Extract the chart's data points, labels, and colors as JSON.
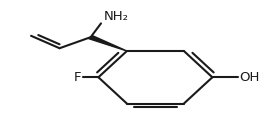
{
  "bg_color": "#ffffff",
  "line_color": "#1a1a1a",
  "line_width": 1.5,
  "text_color": "#1a1a1a",
  "font_size": 9,
  "fig_width": 2.64,
  "fig_height": 1.38,
  "dpi": 100,
  "NH2_label": "NH₂",
  "F_label": "F",
  "OH_label": "OH"
}
